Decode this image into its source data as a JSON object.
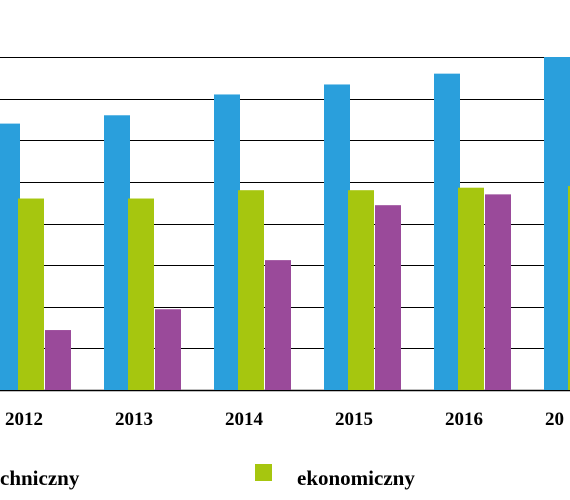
{
  "chart_data": {
    "type": "bar",
    "categories": [
      "2012",
      "2013",
      "2014",
      "2015",
      "2016",
      "20"
    ],
    "series": [
      {
        "name": "chniczny",
        "color": "#2a9fdc",
        "values": [
          320,
          330,
          355,
          367,
          380,
          400
        ]
      },
      {
        "name": "ekonomiczny",
        "color": "#a6c60f",
        "values": [
          230,
          230,
          240,
          240,
          243,
          245
        ]
      },
      {
        "name": "",
        "color": "#9a4a9a",
        "values": [
          72,
          97,
          156,
          222,
          235,
          null
        ]
      }
    ],
    "ylim": [
      0,
      400
    ],
    "grid": true,
    "legend": "bottom"
  }
}
